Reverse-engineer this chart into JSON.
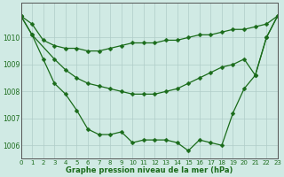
{
  "title": "Graphe pression niveau de la mer (hPa)",
  "background_color": "#d0eae4",
  "grid_color": "#b0ccc8",
  "line_color": "#1a6b1a",
  "xlim": [
    0,
    23
  ],
  "ylim": [
    1005.5,
    1011.3
  ],
  "yticks": [
    1006,
    1007,
    1008,
    1009,
    1010
  ],
  "xticks": [
    0,
    1,
    2,
    3,
    4,
    5,
    6,
    7,
    8,
    9,
    10,
    11,
    12,
    13,
    14,
    15,
    16,
    17,
    18,
    19,
    20,
    21,
    22,
    23
  ],
  "line1_x": [
    0,
    1,
    2,
    3,
    4,
    5,
    6,
    7,
    8,
    9,
    10,
    11,
    12,
    13,
    14,
    15,
    16,
    17,
    18,
    19,
    20,
    21,
    22,
    23
  ],
  "line1_y": [
    1010.8,
    1010.5,
    1009.9,
    1009.7,
    1009.6,
    1009.6,
    1009.5,
    1009.5,
    1009.6,
    1009.7,
    1009.8,
    1009.8,
    1009.8,
    1009.9,
    1009.9,
    1010.0,
    1010.1,
    1010.1,
    1010.2,
    1010.3,
    1010.3,
    1010.4,
    1010.5,
    1010.8
  ],
  "line2_x": [
    0,
    1,
    3,
    4,
    5,
    6,
    7,
    8,
    9,
    10,
    11,
    12,
    13,
    14,
    15,
    16,
    17,
    18,
    19,
    20,
    21,
    22,
    23
  ],
  "line2_y": [
    1010.8,
    1010.1,
    1009.2,
    1008.8,
    1008.5,
    1008.3,
    1008.2,
    1008.1,
    1008.0,
    1007.9,
    1007.9,
    1007.9,
    1008.0,
    1008.1,
    1008.3,
    1008.5,
    1008.7,
    1008.9,
    1009.0,
    1009.2,
    1008.6,
    1010.0,
    1010.8
  ],
  "line3_x": [
    0,
    1,
    2,
    3,
    4,
    5,
    6,
    7,
    8,
    9,
    10,
    11,
    12,
    13,
    14,
    15,
    16,
    17,
    18,
    19,
    20,
    21,
    22,
    23
  ],
  "line3_y": [
    1010.8,
    1010.1,
    1009.2,
    1008.3,
    1007.9,
    1007.3,
    1006.6,
    1006.4,
    1006.4,
    1006.5,
    1006.1,
    1006.2,
    1006.2,
    1006.2,
    1006.1,
    1005.8,
    1006.2,
    1006.1,
    1006.0,
    1007.2,
    1008.1,
    1008.6,
    1010.0,
    1010.8
  ]
}
